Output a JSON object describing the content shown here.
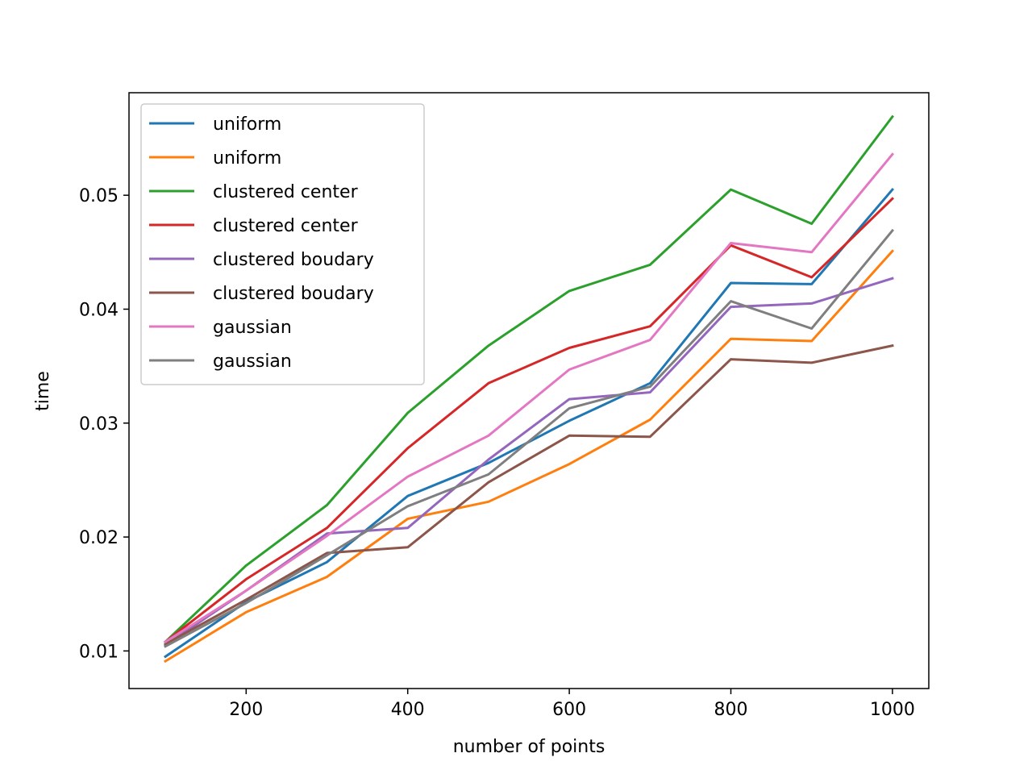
{
  "chart_data": {
    "type": "line",
    "title": "",
    "xlabel": "number of points",
    "ylabel": "time",
    "xlim": [
      55,
      1045
    ],
    "ylim": [
      0.0067,
      0.059
    ],
    "xticks": [
      200,
      400,
      600,
      800,
      1000
    ],
    "xtick_labels": [
      "200",
      "400",
      "600",
      "800",
      "1000"
    ],
    "yticks": [
      0.01,
      0.02,
      0.03,
      0.04,
      0.05
    ],
    "ytick_labels": [
      "0.01",
      "0.02",
      "0.03",
      "0.04",
      "0.05"
    ],
    "grid": false,
    "legend_position": "upper-left",
    "x": [
      100,
      200,
      300,
      400,
      500,
      600,
      700,
      800,
      900,
      1000
    ],
    "series": [
      {
        "name": "uniform",
        "color": "#1f77b4",
        "values": [
          0.0095,
          0.0143,
          0.0178,
          0.0236,
          0.0265,
          0.0302,
          0.0335,
          0.0423,
          0.0422,
          0.0505
        ]
      },
      {
        "name": "uniform",
        "color": "#ff7f0e",
        "values": [
          0.0091,
          0.0134,
          0.0165,
          0.0216,
          0.0231,
          0.0264,
          0.0303,
          0.0374,
          0.0372,
          0.0451
        ]
      },
      {
        "name": "clustered center",
        "color": "#2ca02c",
        "values": [
          0.0108,
          0.0175,
          0.0228,
          0.0309,
          0.0368,
          0.0416,
          0.0439,
          0.0505,
          0.0475,
          0.0569
        ]
      },
      {
        "name": "clustered center",
        "color": "#d62728",
        "values": [
          0.0108,
          0.0163,
          0.0208,
          0.0278,
          0.0335,
          0.0366,
          0.0385,
          0.0456,
          0.0428,
          0.0497
        ]
      },
      {
        "name": "clustered boudary",
        "color": "#9467bd",
        "values": [
          0.0105,
          0.0153,
          0.0203,
          0.0208,
          0.0268,
          0.0321,
          0.0327,
          0.0402,
          0.0405,
          0.0427
        ]
      },
      {
        "name": "clustered boudary",
        "color": "#8c564b",
        "values": [
          0.0106,
          0.0145,
          0.0186,
          0.0191,
          0.0248,
          0.0289,
          0.0288,
          0.0356,
          0.0353,
          0.0368
        ]
      },
      {
        "name": "gaussian",
        "color": "#e377c2",
        "values": [
          0.0108,
          0.0153,
          0.0201,
          0.0253,
          0.0289,
          0.0347,
          0.0373,
          0.0458,
          0.045,
          0.0536
        ]
      },
      {
        "name": "gaussian",
        "color": "#7f7f7f",
        "values": [
          0.0104,
          0.0142,
          0.0184,
          0.0227,
          0.0255,
          0.0313,
          0.0332,
          0.0407,
          0.0383,
          0.0469
        ]
      }
    ]
  }
}
